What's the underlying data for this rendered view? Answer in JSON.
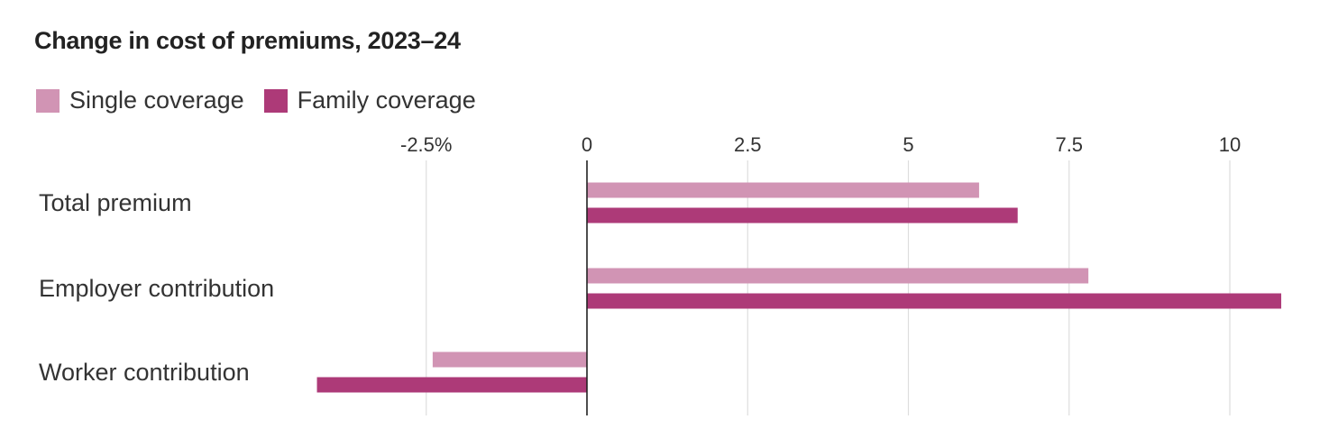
{
  "chart_data": {
    "type": "bar",
    "orientation": "horizontal",
    "title": "Change in cost of premiums, 2023–24",
    "categories": [
      "Total premium",
      "Employer contribution",
      "Worker contribution"
    ],
    "series": [
      {
        "name": "Single coverage",
        "color": "#d194b4",
        "values": [
          6.1,
          7.8,
          -2.4
        ]
      },
      {
        "name": "Family coverage",
        "color": "#ad3a78",
        "values": [
          6.7,
          10.8,
          -4.2
        ]
      }
    ],
    "xlim": [
      -3.5,
      10.9
    ],
    "xticks": [
      {
        "value": -2.5,
        "label": "-2.5%"
      },
      {
        "value": 0,
        "label": "0"
      },
      {
        "value": 2.5,
        "label": "2.5"
      },
      {
        "value": 5,
        "label": "5"
      },
      {
        "value": 7.5,
        "label": "7.5"
      },
      {
        "value": 10,
        "label": "10"
      }
    ],
    "grid": true,
    "legend_position": "top-left",
    "xlabel": "",
    "ylabel": ""
  },
  "colors": {
    "grid": "#dddddd",
    "zero_line": "#222222"
  }
}
